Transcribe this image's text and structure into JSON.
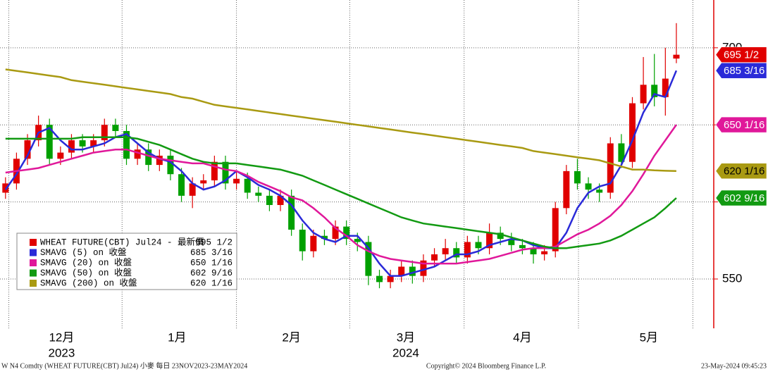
{
  "chart_data": {
    "type": "candlestick",
    "ylim": [
      518,
      731
    ],
    "yticks": [
      550,
      600,
      650,
      700
    ],
    "xlim": [
      -0.5,
      64.4
    ],
    "xticks": [
      {
        "value": 5.1,
        "label": "12月"
      },
      {
        "value": 15.6,
        "label": "1月"
      },
      {
        "value": 26,
        "label": "2月"
      },
      {
        "value": 36.4,
        "label": "3月"
      },
      {
        "value": 47,
        "label": "4月"
      },
      {
        "value": 58.5,
        "label": "5月"
      }
    ],
    "xgrid": [
      0.3,
      10.6,
      21,
      31.3,
      41.7,
      52.1,
      62.5
    ],
    "year_labels": [
      {
        "value": 5.1,
        "label": "2023"
      },
      {
        "value": 36.4,
        "label": "2024"
      }
    ],
    "candles": {
      "name": "WHEAT FUTURE(CBT) Jul24 - 最新價",
      "up_color": "#e00000",
      "down_color": "#00a000",
      "last_label": "695 1/2",
      "open": [
        606,
        612,
        628,
        640,
        650,
        628,
        632,
        640,
        636,
        640,
        650,
        646,
        628,
        634,
        624,
        630,
        618,
        604,
        612,
        614,
        626,
        612,
        615,
        606,
        604,
        598,
        604,
        582,
        568,
        578,
        576,
        584,
        576,
        574,
        552,
        548,
        552,
        558,
        552,
        562,
        566,
        570,
        564,
        574,
        570,
        580,
        576,
        572,
        570,
        566,
        568,
        596,
        620,
        612,
        608,
        606,
        638,
        626,
        664,
        676,
        668,
        693
      ],
      "high": [
        616,
        632,
        644,
        656,
        654,
        636,
        644,
        644,
        644,
        654,
        654,
        650,
        638,
        638,
        634,
        634,
        622,
        616,
        618,
        630,
        630,
        620,
        619,
        610,
        608,
        608,
        608,
        586,
        582,
        582,
        588,
        588,
        580,
        578,
        556,
        556,
        562,
        562,
        566,
        570,
        576,
        574,
        578,
        578,
        586,
        584,
        580,
        576,
        574,
        572,
        600,
        624,
        628,
        616,
        612,
        642,
        644,
        668,
        694,
        696,
        700,
        716
      ],
      "low": [
        602,
        608,
        624,
        636,
        624,
        624,
        628,
        632,
        632,
        636,
        642,
        624,
        624,
        620,
        620,
        614,
        600,
        596,
        608,
        610,
        608,
        608,
        602,
        600,
        594,
        594,
        578,
        562,
        564,
        572,
        572,
        572,
        568,
        546,
        544,
        544,
        548,
        547,
        548,
        558,
        562,
        560,
        560,
        566,
        566,
        572,
        568,
        566,
        560,
        562,
        564,
        592,
        608,
        602,
        600,
        602,
        622,
        622,
        660,
        662,
        656,
        690
      ],
      "close": [
        612,
        628,
        640,
        650,
        628,
        632,
        640,
        636,
        640,
        650,
        646,
        628,
        634,
        624,
        630,
        618,
        604,
        612,
        614,
        626,
        612,
        615,
        606,
        604,
        598,
        604,
        582,
        568,
        578,
        576,
        584,
        576,
        574,
        552,
        548,
        552,
        558,
        552,
        562,
        566,
        570,
        564,
        574,
        570,
        580,
        576,
        572,
        570,
        566,
        568,
        596,
        620,
        612,
        608,
        606,
        638,
        626,
        664,
        676,
        668,
        680,
        695.5
      ]
    },
    "series": [
      {
        "name": "SMAVG (5)  on 收盤",
        "color": "#2a2ad8",
        "value_label": "685 3/16",
        "values": [
          608,
          618,
          630,
          645,
          648,
          640,
          634,
          634,
          636,
          638,
          642,
          644,
          638,
          632,
          628,
          626,
          620,
          612,
          608,
          610,
          614,
          620,
          616,
          611,
          608,
          604,
          598,
          588,
          580,
          576,
          574,
          578,
          578,
          570,
          560,
          552,
          552,
          554,
          556,
          558,
          562,
          566,
          566,
          568,
          572,
          574,
          576,
          575,
          572,
          570,
          570,
          580,
          596,
          606,
          610,
          612,
          624,
          640,
          658,
          670,
          668,
          685.1875
        ]
      },
      {
        "name": "SMAVG (20)  on 收盤",
        "color": "#e0189a",
        "value_label": "650 1/16",
        "values": [
          619,
          620,
          621,
          622,
          624,
          626,
          628,
          630,
          632,
          633,
          634,
          634,
          632,
          630,
          628,
          627,
          626,
          625,
          625,
          623,
          621,
          620,
          617,
          613,
          610,
          607,
          603,
          601,
          596,
          590,
          583,
          578,
          572,
          568,
          565,
          563,
          562,
          561,
          560,
          560,
          560,
          560,
          561,
          562,
          563,
          565,
          567,
          569,
          570,
          570,
          571,
          575,
          579,
          582,
          586,
          591,
          598,
          607,
          618,
          630,
          640,
          650.0625
        ]
      },
      {
        "name": "SMAVG (50)  on 收盤",
        "color": "#129a12",
        "value_label": "602 9/16",
        "values": [
          641,
          641,
          641,
          641,
          641,
          641,
          641,
          642,
          642,
          642,
          642,
          642,
          641,
          639,
          637,
          634,
          631,
          628,
          626,
          625,
          625,
          625,
          624,
          623,
          622,
          621,
          619,
          617,
          614,
          611,
          608,
          605,
          602,
          599,
          596,
          593,
          590,
          588,
          586,
          585,
          584,
          583,
          582,
          581,
          580,
          579,
          577,
          575,
          573,
          571,
          570,
          570,
          571,
          572,
          573,
          575,
          578,
          582,
          586,
          590,
          596,
          602.5625
        ]
      },
      {
        "name": "SMAVG (200)  on 收盤",
        "color": "#a99a12",
        "value_label": "620 1/16",
        "label_text_color": "#000000",
        "values": [
          686,
          685,
          684,
          683,
          682,
          681,
          679,
          678,
          677,
          676,
          675,
          674,
          673,
          672,
          671,
          670,
          668,
          667,
          665,
          663,
          662,
          661,
          660,
          659,
          658,
          657,
          656,
          655,
          654,
          653,
          652,
          651,
          650,
          649,
          648,
          647,
          646,
          645,
          644,
          643,
          642,
          641,
          640,
          639,
          638,
          637,
          636,
          635,
          633,
          632,
          631,
          630,
          629,
          628,
          627,
          625,
          623,
          621,
          621,
          620.5,
          620.2,
          620.0625
        ]
      }
    ],
    "footer": {
      "left": "W N4 Comdty (WHEAT FUTURE(CBT) Jul24) 小麥  每日 23NOV2023-23MAY2024",
      "center": "Copyright© 2024 Bloomberg Finance L.P.",
      "right": "23-May-2024 09:45:23"
    }
  }
}
